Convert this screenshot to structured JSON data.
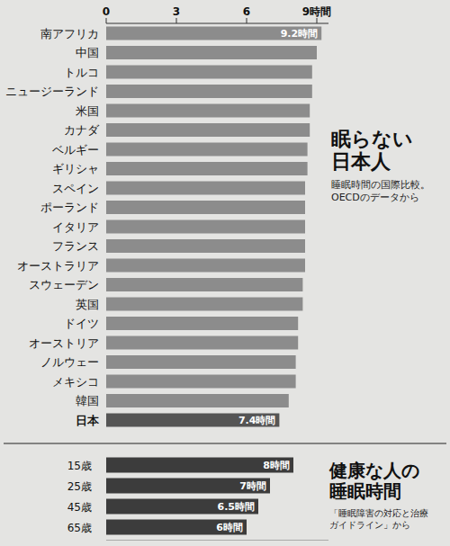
{
  "chart_data": [
    {
      "type": "bar",
      "orientation": "horizontal",
      "title": "眠らない日本人",
      "subtitle": "睡眠時間の国際比較。OECDのデータから",
      "categories": [
        "南アフリカ",
        "中国",
        "トルコ",
        "ニュージーランド",
        "米国",
        "カナダ",
        "ベルギー",
        "ギリシャ",
        "スペイン",
        "ポーランド",
        "イタリア",
        "フランス",
        "オーストラリア",
        "スウェーデン",
        "英国",
        "ドイツ",
        "オーストリア",
        "ノルウェー",
        "メキシコ",
        "韓国",
        "日本"
      ],
      "values": [
        9.2,
        9.0,
        8.8,
        8.8,
        8.7,
        8.7,
        8.6,
        8.6,
        8.5,
        8.5,
        8.5,
        8.5,
        8.5,
        8.4,
        8.4,
        8.2,
        8.2,
        8.1,
        8.1,
        7.8,
        7.4
      ],
      "value_labels": [
        "9.2時間",
        null,
        null,
        null,
        null,
        null,
        null,
        null,
        null,
        null,
        null,
        null,
        null,
        null,
        null,
        null,
        null,
        null,
        null,
        null,
        "7.4時間"
      ],
      "colors": [
        "#8c8c8c",
        "#8c8c8c",
        "#8c8c8c",
        "#8c8c8c",
        "#8c8c8c",
        "#8c8c8c",
        "#8c8c8c",
        "#8c8c8c",
        "#8c8c8c",
        "#8c8c8c",
        "#8c8c8c",
        "#8c8c8c",
        "#8c8c8c",
        "#8c8c8c",
        "#8c8c8c",
        "#8c8c8c",
        "#8c8c8c",
        "#8c8c8c",
        "#8c8c8c",
        "#8c8c8c",
        "#555555"
      ],
      "xlim": [
        0,
        9.5
      ],
      "xticks": [
        0,
        3,
        6,
        {
          "value": 9,
          "label": "9時間"
        }
      ],
      "grid": false,
      "data_labels": true
    },
    {
      "type": "bar",
      "orientation": "horizontal",
      "title": "健康な人の睡眠時間",
      "subtitle": "「睡眠障害の対応と治療ガイドライン」から",
      "categories": [
        "15歳",
        "25歳",
        "45歳",
        "65歳"
      ],
      "values": [
        8,
        7,
        6.5,
        6
      ],
      "value_labels": [
        "8時間",
        "7時間",
        "6.5時間",
        "6時間"
      ],
      "color": "#3c3c3c",
      "xlim": [
        0,
        9.5
      ],
      "tick_labels": false,
      "grid": false,
      "data_labels": true
    }
  ]
}
